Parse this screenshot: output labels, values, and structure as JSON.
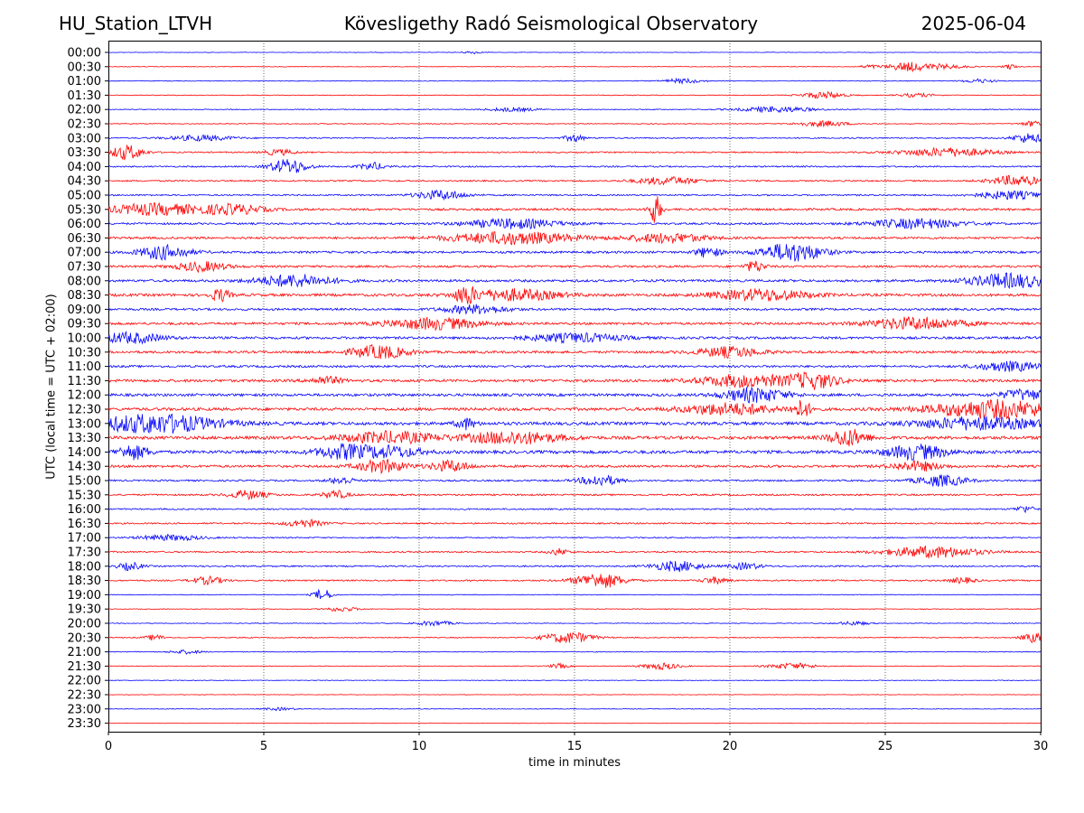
{
  "header": {
    "station": "HU_Station_LTVH",
    "observatory": "Kövesligethy Radó Seismological Observatory",
    "date": "2025-06-04"
  },
  "chart_data": {
    "type": "line",
    "title": "Kövesligethy Radó Seismological Observatory",
    "xlabel": "time in minutes",
    "ylabel": "UTC (local time = UTC + 02:00)",
    "xlim": [
      0,
      30
    ],
    "xticks": [
      0,
      5,
      10,
      15,
      20,
      25,
      30
    ],
    "grid": "vertical dotted lines at every 5 minutes",
    "colors": {
      "blue": "#0000ff",
      "red": "#ff0000"
    },
    "rows": [
      {
        "label": "00:00",
        "color": "blue",
        "noise": 0.2,
        "bursts": [
          {
            "t": 11.7,
            "amp": 0.3,
            "w": 0.3
          }
        ]
      },
      {
        "label": "00:30",
        "color": "red",
        "noise": 0.25,
        "bursts": [
          {
            "t": 24.5,
            "amp": 0.4,
            "w": 0.3
          },
          {
            "t": 25.7,
            "amp": 0.9,
            "w": 0.6
          },
          {
            "t": 26.8,
            "amp": 0.5,
            "w": 0.8
          },
          {
            "t": 29.0,
            "amp": 0.6,
            "w": 0.2
          }
        ]
      },
      {
        "label": "01:00",
        "color": "blue",
        "noise": 0.3,
        "bursts": [
          {
            "t": 18.5,
            "amp": 0.5,
            "w": 0.6
          },
          {
            "t": 28.0,
            "amp": 0.4,
            "w": 0.5
          }
        ]
      },
      {
        "label": "01:30",
        "color": "red",
        "noise": 0.3,
        "bursts": [
          {
            "t": 23.0,
            "amp": 0.7,
            "w": 0.7
          },
          {
            "t": 26.0,
            "amp": 0.4,
            "w": 0.6
          }
        ]
      },
      {
        "label": "02:00",
        "color": "blue",
        "noise": 0.35,
        "bursts": [
          {
            "t": 21.5,
            "amp": 0.6,
            "w": 1.2
          },
          {
            "t": 13.0,
            "amp": 0.4,
            "w": 0.8
          }
        ]
      },
      {
        "label": "02:30",
        "color": "red",
        "noise": 0.35,
        "bursts": [
          {
            "t": 23.0,
            "amp": 0.6,
            "w": 0.8
          },
          {
            "t": 29.8,
            "amp": 0.6,
            "w": 0.4
          }
        ]
      },
      {
        "label": "03:00",
        "color": "blue",
        "noise": 0.5,
        "bursts": [
          {
            "t": 3.0,
            "amp": 0.6,
            "w": 1.0
          },
          {
            "t": 15.0,
            "amp": 0.8,
            "w": 0.3
          },
          {
            "t": 29.6,
            "amp": 1.0,
            "w": 0.5
          }
        ]
      },
      {
        "label": "03:30",
        "color": "red",
        "noise": 0.55,
        "bursts": [
          {
            "t": 0.6,
            "amp": 1.6,
            "w": 0.5
          },
          {
            "t": 5.5,
            "amp": 0.6,
            "w": 0.5
          },
          {
            "t": 27.0,
            "amp": 0.9,
            "w": 1.5
          }
        ]
      },
      {
        "label": "04:00",
        "color": "blue",
        "noise": 0.6,
        "bursts": [
          {
            "t": 5.8,
            "amp": 1.6,
            "w": 0.6
          },
          {
            "t": 8.5,
            "amp": 0.8,
            "w": 0.4
          }
        ]
      },
      {
        "label": "04:30",
        "color": "red",
        "noise": 0.6,
        "bursts": [
          {
            "t": 18.0,
            "amp": 0.8,
            "w": 1.0
          },
          {
            "t": 29.2,
            "amp": 1.1,
            "w": 0.8
          }
        ]
      },
      {
        "label": "05:00",
        "color": "blue",
        "noise": 0.6,
        "bursts": [
          {
            "t": 10.7,
            "amp": 1.0,
            "w": 0.8
          },
          {
            "t": 29.0,
            "amp": 0.9,
            "w": 1.0
          }
        ]
      },
      {
        "label": "05:30",
        "color": "red",
        "noise": 0.9,
        "bursts": [
          {
            "t": 1.5,
            "amp": 1.2,
            "w": 1.5
          },
          {
            "t": 17.6,
            "amp": 3.0,
            "w": 0.2
          },
          {
            "t": 4.0,
            "amp": 1.0,
            "w": 1.0
          }
        ]
      },
      {
        "label": "06:00",
        "color": "blue",
        "noise": 0.8,
        "bursts": [
          {
            "t": 13.0,
            "amp": 1.0,
            "w": 1.5
          },
          {
            "t": 26.0,
            "amp": 1.0,
            "w": 1.5
          }
        ]
      },
      {
        "label": "06:30",
        "color": "red",
        "noise": 0.9,
        "bursts": [
          {
            "t": 13.0,
            "amp": 1.3,
            "w": 2.0
          },
          {
            "t": 18.0,
            "amp": 1.0,
            "w": 1.2
          }
        ]
      },
      {
        "label": "07:00",
        "color": "blue",
        "noise": 0.9,
        "bursts": [
          {
            "t": 1.8,
            "amp": 1.5,
            "w": 0.8
          },
          {
            "t": 22.0,
            "amp": 2.0,
            "w": 1.0
          },
          {
            "t": 19.3,
            "amp": 1.1,
            "w": 0.4
          }
        ]
      },
      {
        "label": "07:30",
        "color": "red",
        "noise": 0.9,
        "bursts": [
          {
            "t": 3.0,
            "amp": 1.0,
            "w": 0.8
          },
          {
            "t": 20.8,
            "amp": 1.2,
            "w": 0.3
          }
        ]
      },
      {
        "label": "08:00",
        "color": "blue",
        "noise": 1.0,
        "bursts": [
          {
            "t": 6.0,
            "amp": 1.3,
            "w": 1.2
          },
          {
            "t": 29.0,
            "amp": 1.5,
            "w": 1.3
          }
        ]
      },
      {
        "label": "08:30",
        "color": "red",
        "noise": 1.1,
        "bursts": [
          {
            "t": 3.6,
            "amp": 1.3,
            "w": 0.3
          },
          {
            "t": 11.5,
            "amp": 1.8,
            "w": 0.3
          },
          {
            "t": 13.0,
            "amp": 1.2,
            "w": 1.5
          },
          {
            "t": 21.0,
            "amp": 1.2,
            "w": 1.5
          }
        ]
      },
      {
        "label": "09:00",
        "color": "blue",
        "noise": 0.9,
        "bursts": [
          {
            "t": 11.8,
            "amp": 0.9,
            "w": 1.0
          }
        ]
      },
      {
        "label": "09:30",
        "color": "red",
        "noise": 1.0,
        "bursts": [
          {
            "t": 10.5,
            "amp": 1.2,
            "w": 1.5
          },
          {
            "t": 26.0,
            "amp": 1.3,
            "w": 1.5
          }
        ]
      },
      {
        "label": "10:00",
        "color": "blue",
        "noise": 1.0,
        "bursts": [
          {
            "t": 0.7,
            "amp": 1.1,
            "w": 1.0
          },
          {
            "t": 15.0,
            "amp": 0.9,
            "w": 1.5
          }
        ]
      },
      {
        "label": "10:30",
        "color": "red",
        "noise": 1.0,
        "bursts": [
          {
            "t": 8.7,
            "amp": 1.4,
            "w": 0.9
          },
          {
            "t": 20.0,
            "amp": 1.1,
            "w": 1.0
          }
        ]
      },
      {
        "label": "11:00",
        "color": "blue",
        "noise": 0.9,
        "bursts": [
          {
            "t": 29.0,
            "amp": 1.0,
            "w": 1.0
          }
        ]
      },
      {
        "label": "11:30",
        "color": "red",
        "noise": 1.1,
        "bursts": [
          {
            "t": 20.5,
            "amp": 1.3,
            "w": 1.5
          },
          {
            "t": 22.7,
            "amp": 1.6,
            "w": 0.8
          },
          {
            "t": 7.0,
            "amp": 0.8,
            "w": 0.5
          }
        ]
      },
      {
        "label": "12:00",
        "color": "blue",
        "noise": 1.1,
        "bursts": [
          {
            "t": 20.8,
            "amp": 1.5,
            "w": 1.0
          },
          {
            "t": 29.5,
            "amp": 1.1,
            "w": 0.8
          }
        ]
      },
      {
        "label": "12:30",
        "color": "red",
        "noise": 1.2,
        "bursts": [
          {
            "t": 22.3,
            "amp": 1.7,
            "w": 0.3
          },
          {
            "t": 28.5,
            "amp": 1.9,
            "w": 2.0
          },
          {
            "t": 20.0,
            "amp": 1.2,
            "w": 1.5
          }
        ]
      },
      {
        "label": "13:00",
        "color": "blue",
        "noise": 1.3,
        "bursts": [
          {
            "t": 1.5,
            "amp": 2.0,
            "w": 2.0
          },
          {
            "t": 28.0,
            "amp": 1.3,
            "w": 2.0
          },
          {
            "t": 11.5,
            "amp": 1.2,
            "w": 0.3
          }
        ]
      },
      {
        "label": "13:30",
        "color": "red",
        "noise": 1.3,
        "bursts": [
          {
            "t": 23.8,
            "amp": 1.8,
            "w": 0.6
          },
          {
            "t": 13.0,
            "amp": 1.3,
            "w": 1.5
          },
          {
            "t": 9.0,
            "amp": 1.2,
            "w": 1.5
          }
        ]
      },
      {
        "label": "14:00",
        "color": "blue",
        "noise": 1.3,
        "bursts": [
          {
            "t": 0.8,
            "amp": 1.5,
            "w": 0.5
          },
          {
            "t": 7.5,
            "amp": 1.4,
            "w": 0.8
          },
          {
            "t": 9.0,
            "amp": 1.2,
            "w": 1.0
          },
          {
            "t": 26.0,
            "amp": 1.5,
            "w": 1.0
          }
        ]
      },
      {
        "label": "14:30",
        "color": "red",
        "noise": 1.0,
        "bursts": [
          {
            "t": 8.8,
            "amp": 1.3,
            "w": 0.8
          },
          {
            "t": 11.0,
            "amp": 1.2,
            "w": 0.6
          },
          {
            "t": 26.0,
            "amp": 1.0,
            "w": 0.8
          }
        ]
      },
      {
        "label": "15:00",
        "color": "blue",
        "noise": 0.7,
        "bursts": [
          {
            "t": 15.8,
            "amp": 1.2,
            "w": 0.6
          },
          {
            "t": 26.8,
            "amp": 1.2,
            "w": 0.8
          },
          {
            "t": 7.5,
            "amp": 0.8,
            "w": 0.4
          }
        ]
      },
      {
        "label": "15:30",
        "color": "red",
        "noise": 0.7,
        "bursts": [
          {
            "t": 4.5,
            "amp": 0.9,
            "w": 0.6
          },
          {
            "t": 7.3,
            "amp": 0.9,
            "w": 0.4
          }
        ]
      },
      {
        "label": "16:00",
        "color": "blue",
        "noise": 0.6,
        "bursts": [
          {
            "t": 29.5,
            "amp": 0.7,
            "w": 0.3
          }
        ]
      },
      {
        "label": "16:30",
        "color": "red",
        "noise": 0.6,
        "bursts": [
          {
            "t": 6.3,
            "amp": 0.8,
            "w": 0.6
          }
        ]
      },
      {
        "label": "17:00",
        "color": "blue",
        "noise": 0.5,
        "bursts": [
          {
            "t": 2.0,
            "amp": 0.6,
            "w": 1.0
          }
        ]
      },
      {
        "label": "17:30",
        "color": "red",
        "noise": 0.6,
        "bursts": [
          {
            "t": 26.5,
            "amp": 1.2,
            "w": 1.5
          },
          {
            "t": 14.5,
            "amp": 0.7,
            "w": 0.3
          }
        ]
      },
      {
        "label": "18:00",
        "color": "blue",
        "noise": 0.6,
        "bursts": [
          {
            "t": 18.3,
            "amp": 1.1,
            "w": 0.8
          },
          {
            "t": 0.7,
            "amp": 0.8,
            "w": 0.4
          },
          {
            "t": 20.5,
            "amp": 0.7,
            "w": 0.5
          }
        ]
      },
      {
        "label": "18:30",
        "color": "red",
        "noise": 0.6,
        "bursts": [
          {
            "t": 15.8,
            "amp": 1.6,
            "w": 0.8
          },
          {
            "t": 3.2,
            "amp": 0.8,
            "w": 0.5
          },
          {
            "t": 19.5,
            "amp": 0.7,
            "w": 0.4
          },
          {
            "t": 27.5,
            "amp": 0.6,
            "w": 0.4
          }
        ]
      },
      {
        "label": "19:00",
        "color": "blue",
        "noise": 0.3,
        "bursts": [
          {
            "t": 6.9,
            "amp": 1.2,
            "w": 0.3
          }
        ]
      },
      {
        "label": "19:30",
        "color": "red",
        "noise": 0.3,
        "bursts": [
          {
            "t": 7.5,
            "amp": 0.5,
            "w": 0.5
          }
        ]
      },
      {
        "label": "20:00",
        "color": "blue",
        "noise": 0.3,
        "bursts": [
          {
            "t": 10.5,
            "amp": 0.5,
            "w": 0.6
          },
          {
            "t": 24.0,
            "amp": 0.4,
            "w": 0.5
          }
        ]
      },
      {
        "label": "20:30",
        "color": "red",
        "noise": 0.4,
        "bursts": [
          {
            "t": 14.8,
            "amp": 1.2,
            "w": 0.8
          },
          {
            "t": 29.8,
            "amp": 1.0,
            "w": 0.4
          },
          {
            "t": 1.5,
            "amp": 0.6,
            "w": 0.3
          }
        ]
      },
      {
        "label": "21:00",
        "color": "blue",
        "noise": 0.3,
        "bursts": [
          {
            "t": 2.5,
            "amp": 0.4,
            "w": 0.5
          }
        ]
      },
      {
        "label": "21:30",
        "color": "red",
        "noise": 0.3,
        "bursts": [
          {
            "t": 17.8,
            "amp": 0.7,
            "w": 0.6
          },
          {
            "t": 22.0,
            "amp": 0.6,
            "w": 0.8
          },
          {
            "t": 14.5,
            "amp": 0.5,
            "w": 0.3
          }
        ]
      },
      {
        "label": "22:00",
        "color": "blue",
        "noise": 0.25,
        "bursts": []
      },
      {
        "label": "22:30",
        "color": "red",
        "noise": 0.2,
        "bursts": []
      },
      {
        "label": "23:00",
        "color": "blue",
        "noise": 0.25,
        "bursts": [
          {
            "t": 5.5,
            "amp": 0.3,
            "w": 0.5
          }
        ]
      },
      {
        "label": "23:30",
        "color": "red",
        "noise": 0.2,
        "bursts": []
      }
    ]
  }
}
